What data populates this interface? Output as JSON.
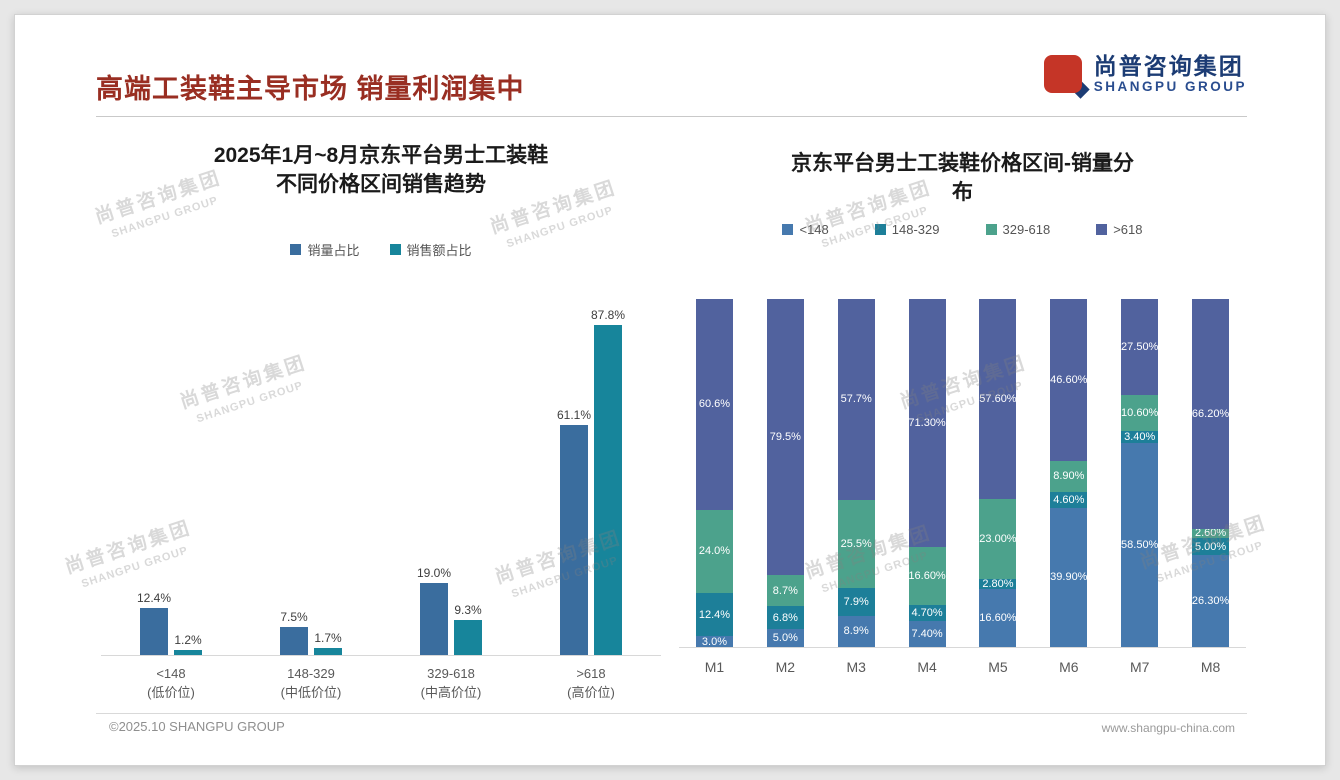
{
  "page": {
    "title": "高端工装鞋主导市场 销量利润集中",
    "footer_left": "©2025.10 SHANGPU GROUP",
    "footer_right": "www.shangpu-china.com"
  },
  "logo": {
    "cn": "尚普咨询集团",
    "en": "SHANGPU GROUP"
  },
  "watermark": {
    "line1": "尚普咨询集团",
    "line2": "SHANGPU GROUP"
  },
  "colors": {
    "title_red": "#992e22",
    "logo_blue": "#1c3c74",
    "logo_red": "#c53527",
    "series_blue": "#3a6d9e",
    "series_teal": "#17859b",
    "stack_lt148": "#4679ae",
    "stack_148_329": "#1d7f99",
    "stack_329_618": "#4ca28c",
    "stack_gt618": "#51629e"
  },
  "chart_data": [
    {
      "type": "bar",
      "title": "2025年1月~8月京东平台男士工装鞋不同价格区间销售趋势",
      "title_lines": [
        "2025年1月~8月京东平台男士工装鞋",
        "不同价格区间销售趋势"
      ],
      "categories": [
        "<148",
        "148-329",
        "329-618",
        ">618"
      ],
      "category_sublabels": [
        "(低价位)",
        "(中低价位)",
        "(中高价位)",
        "(高价位)"
      ],
      "series": [
        {
          "name": "销量占比",
          "color": "#3a6d9e",
          "values": [
            12.4,
            7.5,
            19.0,
            61.1
          ],
          "labels": [
            "12.4%",
            "7.5%",
            "19.0%",
            "61.1%"
          ]
        },
        {
          "name": "销售额占比",
          "color": "#17859b",
          "values": [
            1.2,
            1.7,
            9.3,
            87.8
          ],
          "labels": [
            "1.2%",
            "1.7%",
            "9.3%",
            "87.8%"
          ]
        }
      ],
      "xlabel": "",
      "ylabel": "",
      "ylim": [
        0,
        100
      ],
      "grid": false,
      "legend_position": "top"
    },
    {
      "type": "bar",
      "stacked": true,
      "percent": true,
      "title": "京东平台男士工装鞋价格区间-销量分布",
      "title_lines": [
        "京东平台男士工装鞋价格区间-销量分",
        "布"
      ],
      "categories": [
        "M1",
        "M2",
        "M3",
        "M4",
        "M5",
        "M6",
        "M7",
        "M8"
      ],
      "series": [
        {
          "name": "<148",
          "color": "#4679ae",
          "values": [
            3.0,
            5.0,
            8.9,
            7.4,
            16.6,
            39.9,
            58.5,
            26.3
          ],
          "labels": [
            "3.0%",
            "5.0%",
            "8.9%",
            "7.40%",
            "16.60%",
            "39.90%",
            "58.50%",
            "26.30%"
          ]
        },
        {
          "name": "148-329",
          "color": "#1d7f99",
          "values": [
            12.4,
            6.8,
            7.9,
            4.7,
            2.8,
            4.6,
            3.4,
            5.0
          ],
          "labels": [
            "12.4%",
            "6.8%",
            "7.9%",
            "4.70%",
            "2.80%",
            "4.60%",
            "3.40%",
            "5.00%"
          ]
        },
        {
          "name": "329-618",
          "color": "#4ca28c",
          "values": [
            24.0,
            8.7,
            25.5,
            16.6,
            23.0,
            8.9,
            10.6,
            2.6
          ],
          "labels": [
            "24.0%",
            "8.7%",
            "25.5%",
            "16.60%",
            "23.00%",
            "8.90%",
            "10.60%",
            "2.60%"
          ]
        },
        {
          "name": ">618",
          "color": "#51629e",
          "values": [
            60.6,
            79.5,
            57.7,
            71.3,
            57.6,
            46.6,
            27.5,
            66.2
          ],
          "labels": [
            "60.6%",
            "79.5%",
            "57.7%",
            "71.30%",
            "57.60%",
            "46.60%",
            "27.50%",
            "66.20%"
          ]
        }
      ],
      "xlabel": "",
      "ylabel": "",
      "ylim": [
        0,
        100
      ],
      "grid": false,
      "legend_position": "top"
    }
  ]
}
